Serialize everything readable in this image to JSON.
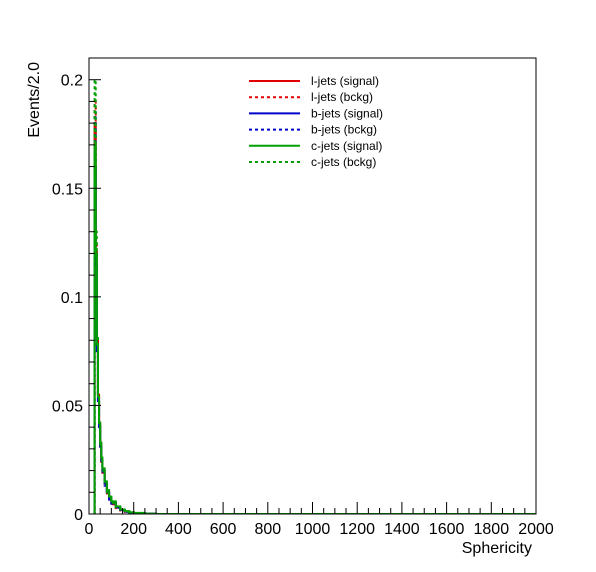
{
  "chart_data": {
    "type": "line",
    "title": "",
    "xlabel": "Sphericity",
    "ylabel": "Events/2.0",
    "xlim": [
      0,
      2000
    ],
    "ylim": [
      0,
      0.21
    ],
    "x_ticks": [
      0,
      200,
      400,
      600,
      800,
      1000,
      1200,
      1400,
      1600,
      1800,
      2000
    ],
    "y_ticks": [
      0,
      0.05,
      0.1,
      0.15,
      0.2
    ],
    "y_tick_labels": [
      "0",
      "0.05",
      "0.1",
      "0.15",
      "0.2"
    ],
    "legend_position": "top-center",
    "grid": false,
    "x": [
      20,
      25,
      30,
      35,
      40,
      45,
      50,
      55,
      60,
      70,
      80,
      90,
      100,
      120,
      140,
      160,
      180,
      200,
      250,
      300
    ],
    "series": [
      {
        "name": "l-jets (signal)",
        "color": "#e00000",
        "dash": "solid",
        "values": [
          0.0,
          0.18,
          0.12,
          0.08,
          0.055,
          0.042,
          0.032,
          0.025,
          0.02,
          0.014,
          0.01,
          0.007,
          0.005,
          0.003,
          0.0018,
          0.0011,
          0.0007,
          0.0004,
          0.0001,
          0.0
        ]
      },
      {
        "name": "l-jets (bckg)",
        "color": "#e00000",
        "dash": "dotted",
        "values": [
          0.0,
          0.19,
          0.125,
          0.08,
          0.054,
          0.041,
          0.031,
          0.024,
          0.019,
          0.013,
          0.009,
          0.0065,
          0.0045,
          0.0027,
          0.0016,
          0.001,
          0.0006,
          0.0003,
          0.0001,
          0.0
        ]
      },
      {
        "name": "b-jets (signal)",
        "color": "#0000cc",
        "dash": "solid",
        "values": [
          0.0,
          0.16,
          0.115,
          0.075,
          0.052,
          0.04,
          0.031,
          0.025,
          0.02,
          0.014,
          0.01,
          0.0072,
          0.0052,
          0.0031,
          0.0019,
          0.0012,
          0.0007,
          0.0004,
          0.0001,
          0.0
        ]
      },
      {
        "name": "b-jets (bckg)",
        "color": "#0000cc",
        "dash": "dotted",
        "values": [
          0.0,
          0.185,
          0.12,
          0.078,
          0.053,
          0.041,
          0.031,
          0.024,
          0.019,
          0.013,
          0.0092,
          0.0066,
          0.0047,
          0.0028,
          0.0017,
          0.001,
          0.0006,
          0.0003,
          0.0001,
          0.0
        ]
      },
      {
        "name": "c-jets (signal)",
        "color": "#00a000",
        "dash": "solid",
        "values": [
          0.0,
          0.17,
          0.12,
          0.078,
          0.054,
          0.042,
          0.033,
          0.026,
          0.021,
          0.015,
          0.011,
          0.008,
          0.0058,
          0.0035,
          0.0021,
          0.0013,
          0.0008,
          0.0005,
          0.0001,
          0.0
        ]
      },
      {
        "name": "c-jets (bckg)",
        "color": "#00a000",
        "dash": "dotted",
        "values": [
          0.0,
          0.2,
          0.13,
          0.082,
          0.055,
          0.042,
          0.032,
          0.025,
          0.02,
          0.014,
          0.0098,
          0.007,
          0.005,
          0.003,
          0.0018,
          0.0011,
          0.0007,
          0.0004,
          0.0001,
          0.0
        ]
      }
    ]
  }
}
